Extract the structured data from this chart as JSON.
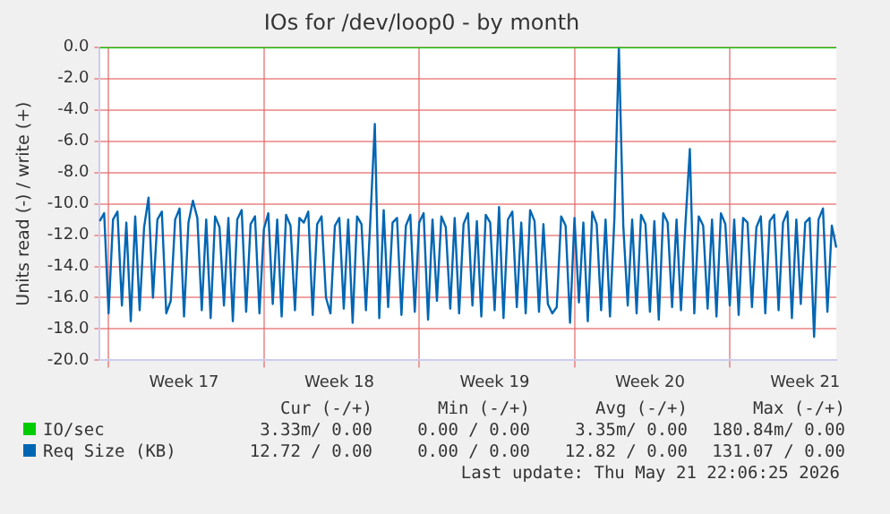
{
  "chart_data": {
    "type": "line",
    "title": "IOs for /dev/loop0 - by month",
    "ylabel": "Units read (-) / write (+)",
    "categories": [
      null,
      null,
      null,
      null,
      null,
      null,
      null,
      null,
      null,
      null,
      null,
      null,
      null,
      null,
      null,
      null,
      null,
      null,
      null,
      "Week 17",
      null,
      null,
      null,
      null,
      null,
      null,
      null,
      null,
      null,
      null,
      null,
      null,
      null,
      null,
      null,
      null,
      null,
      null,
      null,
      null,
      null,
      null,
      null,
      null,
      null,
      null,
      null,
      null,
      null,
      null,
      null,
      null,
      null,
      null,
      "Week 18",
      null,
      null,
      null,
      null,
      null,
      null,
      null,
      null,
      null,
      null,
      null,
      null,
      null,
      null,
      null,
      null,
      null,
      null,
      null,
      null,
      null,
      null,
      null,
      null,
      null,
      null,
      null,
      null,
      null,
      null,
      null,
      null,
      null,
      null,
      "Week 19",
      null,
      null,
      null,
      null,
      null,
      null,
      null,
      null,
      null,
      null,
      null,
      null,
      null,
      null,
      null,
      null,
      null,
      null,
      null,
      null,
      null,
      null,
      null,
      null,
      null,
      null,
      null,
      null,
      null,
      null,
      null,
      null,
      null,
      null,
      "Week 20",
      null,
      null,
      null,
      null,
      null,
      null,
      null,
      null,
      null,
      null,
      null,
      null,
      null,
      null,
      null,
      null,
      null,
      null,
      null,
      null,
      null,
      null,
      null,
      null,
      null,
      null,
      null,
      null,
      null,
      null,
      null,
      null,
      null,
      null,
      "Week 21",
      null,
      null,
      null,
      null,
      null,
      null,
      null
    ],
    "ylim": [
      -20,
      0
    ],
    "yticks": [
      {
        "value": 0,
        "label": "0.0"
      },
      {
        "value": -2,
        "label": "-2.0"
      },
      {
        "value": -4,
        "label": "-4.0"
      },
      {
        "value": -6,
        "label": "-6.0"
      },
      {
        "value": -8,
        "label": "-8.0"
      },
      {
        "value": -10,
        "label": "-10.0"
      },
      {
        "value": -12,
        "label": "-12.0"
      },
      {
        "value": -14,
        "label": "-14.0"
      },
      {
        "value": -16,
        "label": "-16.0"
      },
      {
        "value": -18,
        "label": "-18.0"
      },
      {
        "value": -20,
        "label": "-20.0"
      }
    ],
    "grid": true,
    "legend": "bottom",
    "marker": "none",
    "series": [
      {
        "name": "IO/sec",
        "color": "#00cc00",
        "values": [
          0,
          0,
          0,
          0,
          0,
          0,
          0,
          0,
          0,
          0,
          0,
          0,
          0,
          0,
          0,
          0,
          0,
          0,
          0,
          0,
          0,
          0,
          0,
          0,
          0,
          0,
          0,
          0,
          0,
          0,
          0,
          0,
          0,
          0,
          0,
          0,
          0,
          0,
          0,
          0,
          0,
          0,
          0,
          0,
          0,
          0,
          0,
          0,
          0,
          0,
          0,
          0,
          0,
          0,
          0,
          0,
          0,
          0,
          0,
          0,
          0,
          0,
          0,
          0,
          0,
          0,
          0,
          0,
          0,
          0,
          0,
          0,
          0,
          0,
          0,
          0,
          0,
          0,
          0,
          0,
          0,
          0,
          0,
          0,
          0,
          0,
          0,
          0,
          0,
          0,
          0,
          0,
          0,
          0,
          0,
          0,
          0,
          0,
          0,
          0,
          0,
          0,
          0,
          0,
          0,
          0,
          0,
          0,
          0,
          0,
          0,
          0,
          0,
          0,
          0,
          0,
          0,
          0,
          0,
          0,
          0,
          0,
          0,
          0,
          0,
          0,
          0,
          0,
          0,
          0,
          0,
          0,
          0,
          0,
          0,
          0,
          0,
          0,
          0,
          0,
          0,
          0,
          0,
          0,
          0,
          0,
          0,
          0,
          0,
          0,
          0,
          0,
          0,
          0,
          0,
          0,
          0,
          0,
          0,
          0,
          0,
          0,
          0,
          0,
          0,
          0,
          0
        ]
      },
      {
        "name": "Req Size (KB)",
        "color": "#0066b3",
        "values": [
          -11.1,
          -10.6,
          -17.0,
          -11.0,
          -10.5,
          -16.5,
          -11.2,
          -17.5,
          -10.8,
          -16.8,
          -11.5,
          -9.6,
          -16.0,
          -11.0,
          -10.5,
          -17.0,
          -16.2,
          -11.0,
          -10.3,
          -17.2,
          -11.2,
          -9.8,
          -10.9,
          -16.8,
          -11.0,
          -17.3,
          -10.8,
          -11.5,
          -16.5,
          -10.9,
          -17.5,
          -11.0,
          -10.4,
          -16.9,
          -11.3,
          -10.8,
          -17.0,
          -11.6,
          -10.6,
          -16.4,
          -11.0,
          -17.2,
          -10.7,
          -11.4,
          -16.8,
          -10.9,
          -11.2,
          -10.5,
          -17.1,
          -11.3,
          -10.8,
          -16.0,
          -17.0,
          -11.4,
          -10.9,
          -16.7,
          -11.0,
          -17.6,
          -10.8,
          -11.3,
          -16.8,
          -11.0,
          -4.9,
          -17.3,
          -10.4,
          -16.6,
          -11.2,
          -10.9,
          -17.1,
          -11.4,
          -10.7,
          -16.9,
          -11.2,
          -10.6,
          -17.4,
          -11.0,
          -16.2,
          -10.8,
          -11.5,
          -16.7,
          -10.9,
          -17.0,
          -11.3,
          -10.6,
          -16.5,
          -11.1,
          -17.2,
          -10.7,
          -11.2,
          -16.8,
          -10.2,
          -17.3,
          -11.0,
          -10.5,
          -16.6,
          -11.2,
          -17.0,
          -10.4,
          -11.1,
          -16.9,
          -11.3,
          -16.4,
          -17.0,
          -16.6,
          -10.8,
          -11.4,
          -17.6,
          -10.9,
          -16.3,
          -11.2,
          -17.5,
          -10.5,
          -11.3,
          -16.8,
          -11.0,
          -17.2,
          -10.9,
          0,
          -11.4,
          -16.5,
          -11.0,
          -17.0,
          -10.7,
          -11.3,
          -16.9,
          -11.1,
          -17.4,
          -10.6,
          -11.2,
          -16.6,
          -11.0,
          -16.8,
          -11.3,
          -6.5,
          -17.0,
          -10.8,
          -11.4,
          -16.7,
          -11.0,
          -17.2,
          -10.6,
          -11.3,
          -16.5,
          -11.0,
          -17.1,
          -10.9,
          -11.2,
          -16.6,
          -11.5,
          -10.8,
          -17.0,
          -11.1,
          -10.7,
          -16.8,
          -11.2,
          -10.5,
          -17.3,
          -11.0,
          -16.4,
          -11.2,
          -10.9,
          -18.5,
          -11.0,
          -10.3,
          -16.9,
          -11.4,
          -12.8
        ]
      }
    ],
    "annotations": [
      "Cur (-/+)",
      "Min (-/+)",
      "Avg (-/+)",
      "Max (-/+)",
      "3.33m/ 0.00",
      "0.00 / 0.00",
      "3.35m/ 0.00",
      "180.84m/ 0.00",
      "12.72 / 0.00",
      "0.00 / 0.00",
      "12.82 / 0.00",
      "131.07 / 0.00",
      "Last update: Thu May 21 22:06:25 2026"
    ]
  }
}
